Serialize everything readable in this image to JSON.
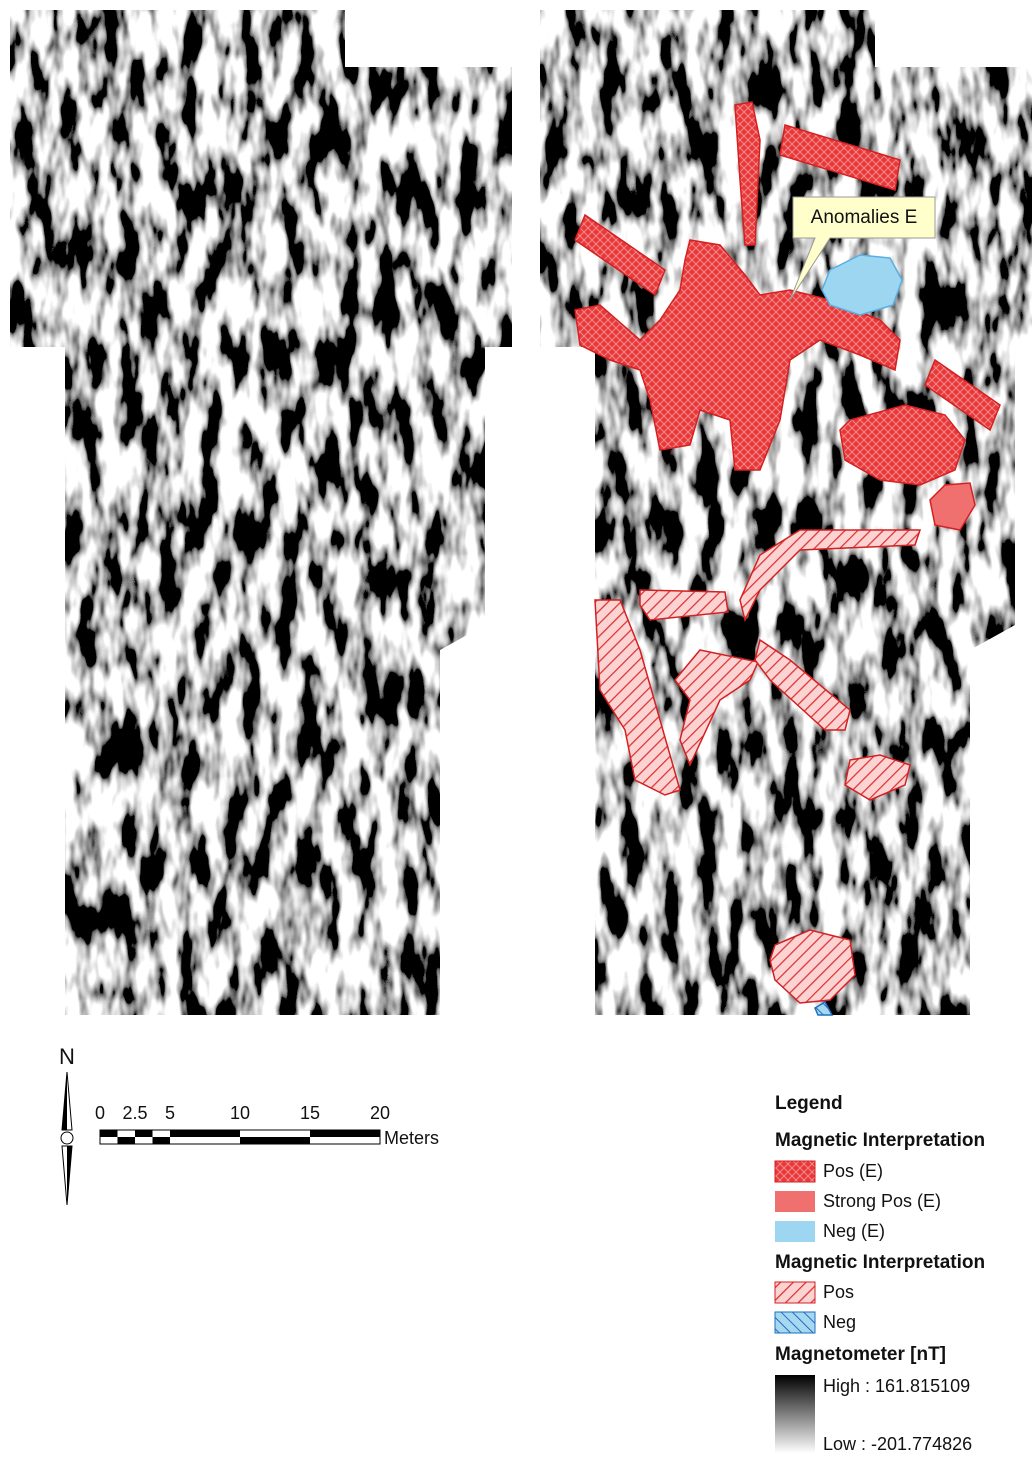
{
  "map": {
    "callout": "Anomalies E",
    "north": "N",
    "scale": {
      "labels": [
        "0",
        "2.5",
        "5",
        "10",
        "15",
        "20"
      ],
      "unit": "Meters"
    }
  },
  "legend": {
    "title": "Legend",
    "groups": [
      {
        "title": "Magnetic Interpretation",
        "items": [
          "Pos (E)",
          "Strong Pos (E)",
          "Neg (E)"
        ]
      },
      {
        "title": "Magnetic Interpretation",
        "items": [
          "Pos",
          "Neg"
        ]
      }
    ],
    "raster": {
      "title": "Magnetometer [nT]",
      "high": "High : 161.815109",
      "low": "Low : -201.774826"
    }
  }
}
